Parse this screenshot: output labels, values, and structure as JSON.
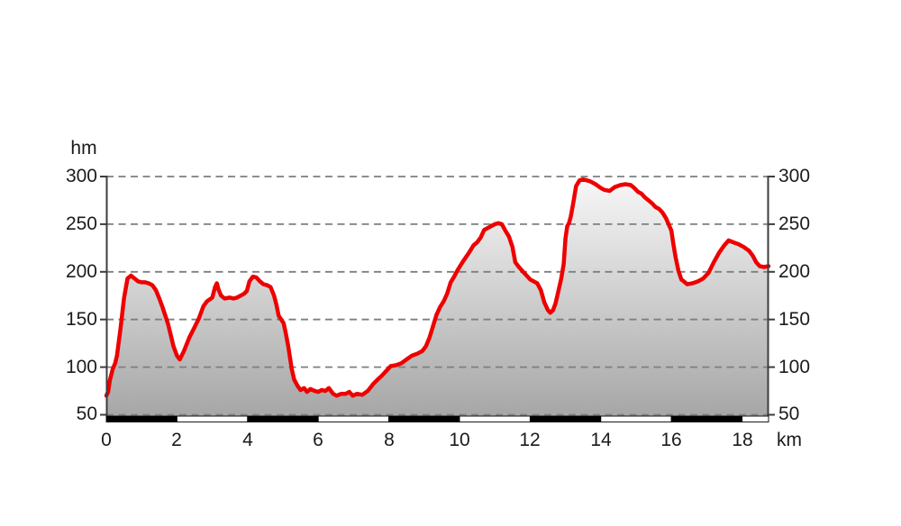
{
  "chart_data": {
    "type": "area",
    "title": "",
    "x_unit_label": "km",
    "y_unit_label": "hm",
    "x_tick_labels": [
      "0",
      "2",
      "4",
      "6",
      "8",
      "10",
      "12",
      "14",
      "16",
      "18"
    ],
    "y_tick_values": [
      300,
      250,
      200,
      150,
      100,
      50
    ],
    "y_tick_labels": [
      "300",
      "250",
      "200",
      "150",
      "100",
      "50"
    ],
    "xlim": [
      0,
      18.75
    ],
    "ylim": [
      50,
      300
    ],
    "grid": "horizontal dashed lines at every 50 hm",
    "legend": "none",
    "line_color": "#ee0000",
    "axis_color": "#3d3d3d",
    "grid_color": "#7f7f7f",
    "fill_gradient_top": "#f8f8f8",
    "fill_gradient_bottom": "#a6a6a6",
    "distance_bar": {
      "interval_km": 2,
      "color_even": "#000000",
      "color_odd": "#ffffff",
      "description": "alternating black/white kilometre bar along the baseline"
    },
    "profile_km_hm": [
      [
        0,
        70
      ],
      [
        0.05,
        74
      ],
      [
        0.1,
        86
      ],
      [
        0.18,
        98
      ],
      [
        0.25,
        104
      ],
      [
        0.3,
        112
      ],
      [
        0.4,
        140
      ],
      [
        0.5,
        172
      ],
      [
        0.6,
        193
      ],
      [
        0.7,
        196
      ],
      [
        0.8,
        193
      ],
      [
        0.9,
        190
      ],
      [
        1.0,
        189
      ],
      [
        1.1,
        189
      ],
      [
        1.2,
        188
      ],
      [
        1.3,
        186
      ],
      [
        1.4,
        181
      ],
      [
        1.5,
        172
      ],
      [
        1.6,
        162
      ],
      [
        1.75,
        145
      ],
      [
        1.9,
        122
      ],
      [
        2.0,
        112
      ],
      [
        2.08,
        108
      ],
      [
        2.2,
        117
      ],
      [
        2.35,
        131
      ],
      [
        2.5,
        142
      ],
      [
        2.62,
        151
      ],
      [
        2.75,
        164
      ],
      [
        2.85,
        169
      ],
      [
        3.0,
        173
      ],
      [
        3.08,
        184
      ],
      [
        3.13,
        188
      ],
      [
        3.18,
        181
      ],
      [
        3.25,
        175
      ],
      [
        3.35,
        172
      ],
      [
        3.5,
        173
      ],
      [
        3.6,
        172
      ],
      [
        3.7,
        173
      ],
      [
        3.8,
        175
      ],
      [
        3.9,
        177
      ],
      [
        3.98,
        180
      ],
      [
        4.05,
        190
      ],
      [
        4.15,
        195
      ],
      [
        4.25,
        194
      ],
      [
        4.35,
        190
      ],
      [
        4.45,
        187
      ],
      [
        4.55,
        186
      ],
      [
        4.65,
        184
      ],
      [
        4.75,
        175
      ],
      [
        4.82,
        165
      ],
      [
        4.88,
        154
      ],
      [
        4.95,
        150
      ],
      [
        5.02,
        146
      ],
      [
        5.08,
        136
      ],
      [
        5.15,
        122
      ],
      [
        5.25,
        98
      ],
      [
        5.32,
        87
      ],
      [
        5.42,
        80
      ],
      [
        5.5,
        76
      ],
      [
        5.6,
        78
      ],
      [
        5.68,
        74
      ],
      [
        5.78,
        77
      ],
      [
        5.9,
        75
      ],
      [
        6.0,
        74
      ],
      [
        6.1,
        76
      ],
      [
        6.2,
        75
      ],
      [
        6.3,
        78
      ],
      [
        6.42,
        72
      ],
      [
        6.52,
        70
      ],
      [
        6.65,
        72
      ],
      [
        6.78,
        72
      ],
      [
        6.88,
        74
      ],
      [
        6.98,
        70
      ],
      [
        7.1,
        72
      ],
      [
        7.25,
        71
      ],
      [
        7.4,
        75
      ],
      [
        7.55,
        82
      ],
      [
        7.68,
        87
      ],
      [
        7.8,
        91
      ],
      [
        7.95,
        97
      ],
      [
        8.05,
        101
      ],
      [
        8.2,
        102
      ],
      [
        8.35,
        104
      ],
      [
        8.5,
        108
      ],
      [
        8.65,
        112
      ],
      [
        8.8,
        114
      ],
      [
        8.95,
        117
      ],
      [
        9.05,
        122
      ],
      [
        9.15,
        131
      ],
      [
        9.25,
        143
      ],
      [
        9.35,
        155
      ],
      [
        9.45,
        163
      ],
      [
        9.55,
        169
      ],
      [
        9.65,
        177
      ],
      [
        9.75,
        189
      ],
      [
        9.85,
        195
      ],
      [
        9.95,
        202
      ],
      [
        10.1,
        211
      ],
      [
        10.25,
        219
      ],
      [
        10.4,
        228
      ],
      [
        10.5,
        231
      ],
      [
        10.6,
        236
      ],
      [
        10.7,
        244
      ],
      [
        10.8,
        246
      ],
      [
        10.9,
        248
      ],
      [
        11.0,
        250
      ],
      [
        11.1,
        251
      ],
      [
        11.2,
        250
      ],
      [
        11.3,
        243
      ],
      [
        11.4,
        237
      ],
      [
        11.5,
        226
      ],
      [
        11.58,
        210
      ],
      [
        11.68,
        205
      ],
      [
        11.8,
        200
      ],
      [
        11.9,
        196
      ],
      [
        12.0,
        192
      ],
      [
        12.1,
        190
      ],
      [
        12.2,
        188
      ],
      [
        12.3,
        181
      ],
      [
        12.4,
        168
      ],
      [
        12.5,
        160
      ],
      [
        12.57,
        157
      ],
      [
        12.65,
        160
      ],
      [
        12.72,
        167
      ],
      [
        12.8,
        180
      ],
      [
        12.88,
        193
      ],
      [
        12.95,
        208
      ],
      [
        13.0,
        235
      ],
      [
        13.05,
        248
      ],
      [
        13.1,
        251
      ],
      [
        13.15,
        258
      ],
      [
        13.22,
        272
      ],
      [
        13.3,
        290
      ],
      [
        13.4,
        296
      ],
      [
        13.5,
        297
      ],
      [
        13.6,
        296
      ],
      [
        13.7,
        295
      ],
      [
        13.85,
        292
      ],
      [
        14.0,
        288
      ],
      [
        14.1,
        286
      ],
      [
        14.25,
        285
      ],
      [
        14.4,
        289
      ],
      [
        14.55,
        291
      ],
      [
        14.7,
        292
      ],
      [
        14.85,
        291
      ],
      [
        14.95,
        288
      ],
      [
        15.05,
        284
      ],
      [
        15.15,
        282
      ],
      [
        15.25,
        278
      ],
      [
        15.35,
        275
      ],
      [
        15.45,
        272
      ],
      [
        15.55,
        268
      ],
      [
        15.65,
        266
      ],
      [
        15.75,
        262
      ],
      [
        15.85,
        256
      ],
      [
        15.92,
        250
      ],
      [
        16.0,
        243
      ],
      [
        16.05,
        230
      ],
      [
        16.12,
        215
      ],
      [
        16.2,
        201
      ],
      [
        16.28,
        192
      ],
      [
        16.35,
        190
      ],
      [
        16.45,
        187
      ],
      [
        16.6,
        188
      ],
      [
        16.75,
        190
      ],
      [
        16.9,
        193
      ],
      [
        17.05,
        199
      ],
      [
        17.2,
        210
      ],
      [
        17.35,
        220
      ],
      [
        17.5,
        228
      ],
      [
        17.62,
        233
      ],
      [
        17.75,
        231
      ],
      [
        17.9,
        229
      ],
      [
        18.05,
        226
      ],
      [
        18.2,
        222
      ],
      [
        18.3,
        217
      ],
      [
        18.4,
        210
      ],
      [
        18.5,
        206
      ],
      [
        18.62,
        205
      ],
      [
        18.75,
        206
      ]
    ]
  }
}
